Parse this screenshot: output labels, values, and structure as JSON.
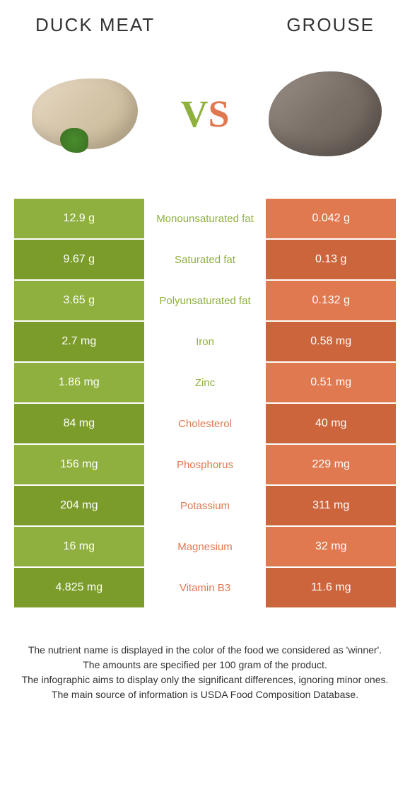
{
  "header": {
    "left_title": "Duck meat",
    "right_title": "Grouse"
  },
  "vs": {
    "v": "V",
    "s": "S"
  },
  "colors": {
    "left_bg": "#8fb03e",
    "right_bg": "#e07850",
    "row_alt_darken": 0.08
  },
  "rows": [
    {
      "left": "12.9 g",
      "label": "Monounsaturated fat",
      "right": "0.042 g",
      "winner": "left"
    },
    {
      "left": "9.67 g",
      "label": "Saturated fat",
      "right": "0.13 g",
      "winner": "left"
    },
    {
      "left": "3.65 g",
      "label": "Polyunsaturated fat",
      "right": "0.132 g",
      "winner": "left"
    },
    {
      "left": "2.7 mg",
      "label": "Iron",
      "right": "0.58 mg",
      "winner": "left"
    },
    {
      "left": "1.86 mg",
      "label": "Zinc",
      "right": "0.51 mg",
      "winner": "left"
    },
    {
      "left": "84 mg",
      "label": "Cholesterol",
      "right": "40 mg",
      "winner": "right"
    },
    {
      "left": "156 mg",
      "label": "Phosphorus",
      "right": "229 mg",
      "winner": "right"
    },
    {
      "left": "204 mg",
      "label": "Potassium",
      "right": "311 mg",
      "winner": "right"
    },
    {
      "left": "16 mg",
      "label": "Magnesium",
      "right": "32 mg",
      "winner": "right"
    },
    {
      "left": "4.825 mg",
      "label": "Vitamin B3",
      "right": "11.6 mg",
      "winner": "right"
    }
  ],
  "footer": {
    "line1": "The nutrient name is displayed in the color of the food we considered as 'winner'.",
    "line2": "The amounts are specified per 100 gram of the product.",
    "line3": "The infographic aims to display only the significant differences, ignoring minor ones.",
    "line4": "The main source of information is USDA Food Composition Database."
  }
}
